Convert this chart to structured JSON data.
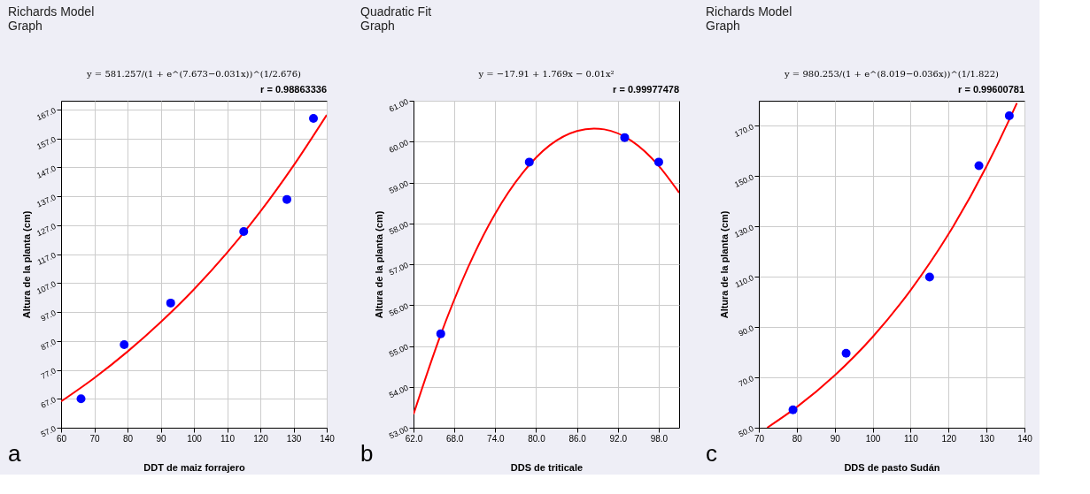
{
  "chart_data": [
    {
      "type": "scatter",
      "title": "Richards Model Graph",
      "xlabel": "DDT de maiz forrajero",
      "ylabel": "Altura de la planta (cm)",
      "annotations": [
        "y = 581.257/(1 + e^(7.673−0.031x))^(1/2.676)",
        "r = 0.98863336",
        "a"
      ],
      "xlim": [
        60,
        140
      ],
      "xticks": [
        60,
        70,
        80,
        90,
        100,
        110,
        120,
        130,
        140
      ],
      "ylim": [
        57,
        170
      ],
      "yticks": [
        {
          "value": 57,
          "label": "57.0"
        },
        {
          "value": 67,
          "label": "67.0"
        },
        {
          "value": 77,
          "label": "77.0"
        },
        {
          "value": 87,
          "label": "87.0"
        },
        {
          "value": 97,
          "label": "97.0"
        },
        {
          "value": 107,
          "label": "107.0"
        },
        {
          "value": 117,
          "label": "117.0"
        },
        {
          "value": 127,
          "label": "127.0"
        },
        {
          "value": 137,
          "label": "137.0"
        },
        {
          "value": 147,
          "label": "147.0"
        },
        {
          "value": 157,
          "label": "157.0"
        },
        {
          "value": 167,
          "label": "167.0"
        }
      ],
      "grid": true,
      "series": [
        {
          "type": "line",
          "color": "#ff0000",
          "marker": "none",
          "line_style": "solid",
          "x": [
            60,
            70,
            80,
            90,
            100,
            110,
            120,
            130,
            140
          ],
          "values": [
            66.1,
            74.2,
            83.3,
            93.5,
            104.8,
            117.5,
            131.7,
            147.6,
            165.1
          ]
        },
        {
          "color": "#0000ff",
          "marker": "circle",
          "x": [
            66,
            79,
            93,
            115,
            128,
            136
          ],
          "values": [
            67.0,
            85.7,
            100.1,
            124.8,
            135.9,
            163.9
          ]
        }
      ]
    },
    {
      "type": "scatter",
      "title": "Quadratic Fit Graph",
      "xlabel": "DDS de triticale",
      "ylabel": "Altura de la planta (cm)",
      "annotations": [
        "y = −17.91 + 1.769x − 0.01x²",
        "r = 0.99977478",
        "b"
      ],
      "xlim": [
        62,
        101
      ],
      "xticks": [
        {
          "value": 62,
          "label": "62.0"
        },
        {
          "value": 68,
          "label": "68.0"
        },
        {
          "value": 74,
          "label": "74.0"
        },
        {
          "value": 80,
          "label": "80.0"
        },
        {
          "value": 86,
          "label": "86.0"
        },
        {
          "value": 92,
          "label": "92.0"
        },
        {
          "value": 98,
          "label": "98.0"
        }
      ],
      "ylim": [
        53,
        61
      ],
      "yticks": [
        {
          "value": 53,
          "label": "53.00"
        },
        {
          "value": 54,
          "label": "54.00"
        },
        {
          "value": 55,
          "label": "55.00"
        },
        {
          "value": 56,
          "label": "56.00"
        },
        {
          "value": 57,
          "label": "57.00"
        },
        {
          "value": 58,
          "label": "58.00"
        },
        {
          "value": 59,
          "label": "59.00"
        },
        {
          "value": 60,
          "label": "60.00"
        },
        {
          "value": 61,
          "label": "61.00"
        }
      ],
      "grid": true,
      "series": [
        {
          "type": "line",
          "color": "#ff0000",
          "marker": "none",
          "line_style": "solid",
          "x": [
            62,
            66,
            70,
            74,
            78,
            82,
            86,
            88.5,
            90,
            94,
            98,
            101
          ],
          "values": [
            53.33,
            55.28,
            56.92,
            58.24,
            59.23,
            59.91,
            60.26,
            60.32,
            60.3,
            60.02,
            59.41,
            58.75
          ]
        },
        {
          "color": "#0000ff",
          "marker": "circle",
          "x": [
            66,
            79,
            93,
            98
          ],
          "values": [
            55.3,
            59.5,
            60.1,
            59.5
          ]
        }
      ]
    },
    {
      "type": "scatter",
      "title": "Richards Model Graph",
      "xlabel": "DDS de pasto Sudán",
      "ylabel": "Altura de la planta (cm)",
      "annotations": [
        "y = 980.253/(1 + e^(8.019−0.036x))^(1/1.822)",
        "r = 0.99600781",
        "c"
      ],
      "xlim": [
        70,
        140
      ],
      "xticks": [
        70,
        80,
        90,
        100,
        110,
        120,
        130,
        140
      ],
      "ylim": [
        50,
        180
      ],
      "yticks": [
        {
          "value": 50,
          "label": "50.0"
        },
        {
          "value": 70,
          "label": "70.0"
        },
        {
          "value": 90,
          "label": "90.0"
        },
        {
          "value": 110,
          "label": "110.0"
        },
        {
          "value": 130,
          "label": "130.0"
        },
        {
          "value": 150,
          "label": "150.0"
        },
        {
          "value": 170,
          "label": "170.0"
        }
      ],
      "grid": true,
      "series": [
        {
          "type": "line",
          "color": "#ff0000",
          "marker": "none",
          "line_style": "solid",
          "x": [
            72.2,
            80,
            90,
            100,
            110,
            120,
            130,
            136,
            138
          ],
          "values": [
            50.0,
            58.2,
            70.8,
            86.1,
            104.7,
            127.0,
            153.9,
            172.5,
            179.1
          ]
        },
        {
          "color": "#0000ff",
          "marker": "circle",
          "x": [
            79,
            93,
            115,
            128,
            136
          ],
          "values": [
            57.1,
            79.6,
            109.9,
            154.2,
            174.0
          ]
        }
      ]
    }
  ]
}
